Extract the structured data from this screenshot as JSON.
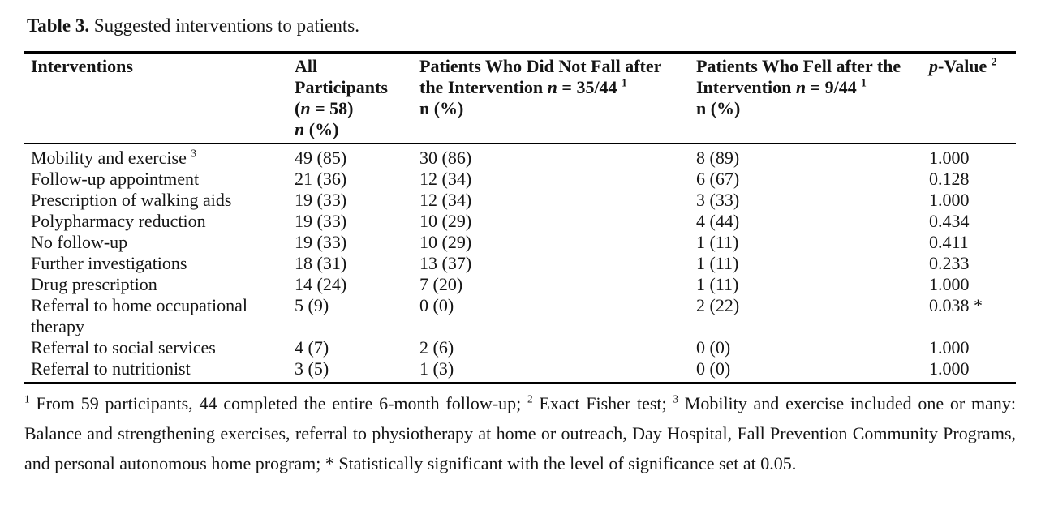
{
  "title": {
    "label": "Table 3.",
    "text": " Suggested interventions to patients."
  },
  "table": {
    "header": [
      {
        "lines": [
          [
            {
              "t": "Interventions"
            }
          ]
        ]
      },
      {
        "lines": [
          [
            {
              "t": "All"
            }
          ],
          [
            {
              "t": "Participants"
            }
          ],
          [
            {
              "t": "("
            },
            {
              "t": "n",
              "i": true
            },
            {
              "t": " = 58)"
            }
          ],
          [
            {
              "t": "n",
              "i": true
            },
            {
              "t": " (%)"
            }
          ]
        ]
      },
      {
        "lines": [
          [
            {
              "t": "Patients Who Did Not Fall after"
            }
          ],
          [
            {
              "t": "the Intervention "
            },
            {
              "t": "n",
              "i": true
            },
            {
              "t": " = 35/44 "
            },
            {
              "t": "1",
              "sup": true
            }
          ],
          [
            {
              "t": "n (%)"
            }
          ]
        ]
      },
      {
        "lines": [
          [
            {
              "t": "Patients Who Fell after the"
            }
          ],
          [
            {
              "t": "Intervention "
            },
            {
              "t": "n",
              "i": true
            },
            {
              "t": " = 9/44 "
            },
            {
              "t": "1",
              "sup": true
            }
          ],
          [
            {
              "t": "n (%)"
            }
          ]
        ]
      },
      {
        "lines": [
          [
            {
              "t": "p",
              "i": true
            },
            {
              "t": "-Value "
            },
            {
              "t": "2",
              "sup": true
            }
          ]
        ]
      }
    ],
    "rows": [
      {
        "label": [
          {
            "t": "Mobility and exercise "
          },
          {
            "t": "3",
            "sup": true
          }
        ],
        "all": "49 (85)",
        "no_fall": "30 (86)",
        "fell": "8 (89)",
        "p": "1.000"
      },
      {
        "label": [
          {
            "t": "Follow-up appointment"
          }
        ],
        "all": "21 (36)",
        "no_fall": "12 (34)",
        "fell": "6 (67)",
        "p": "0.128"
      },
      {
        "label": [
          {
            "t": "Prescription of walking aids"
          }
        ],
        "all": "19 (33)",
        "no_fall": "12 (34)",
        "fell": "3 (33)",
        "p": "1.000"
      },
      {
        "label": [
          {
            "t": "Polypharmacy reduction"
          }
        ],
        "all": "19 (33)",
        "no_fall": "10 (29)",
        "fell": "4 (44)",
        "p": "0.434"
      },
      {
        "label": [
          {
            "t": "No follow-up"
          }
        ],
        "all": "19 (33)",
        "no_fall": "10 (29)",
        "fell": "1 (11)",
        "p": "0.411"
      },
      {
        "label": [
          {
            "t": "Further investigations"
          }
        ],
        "all": "18 (31)",
        "no_fall": "13 (37)",
        "fell": "1 (11)",
        "p": "0.233"
      },
      {
        "label": [
          {
            "t": "Drug prescription"
          }
        ],
        "all": "14 (24)",
        "no_fall": "7 (20)",
        "fell": "1 (11)",
        "p": "1.000"
      },
      {
        "label": [
          {
            "t": "Referral to home occupational therapy"
          }
        ],
        "all": "5 (9)",
        "no_fall": "0 (0)",
        "fell": "2 (22)",
        "p": "0.038 *"
      },
      {
        "label": [
          {
            "t": "Referral to social services"
          }
        ],
        "all": "4 (7)",
        "no_fall": "2 (6)",
        "fell": "0 (0)",
        "p": "1.000"
      },
      {
        "label": [
          {
            "t": "Referral to nutritionist"
          }
        ],
        "all": "3 (5)",
        "no_fall": "1 (3)",
        "fell": "0 (0)",
        "p": "1.000"
      }
    ]
  },
  "footnote": {
    "segments": [
      {
        "t": "1",
        "sup": true
      },
      {
        "t": " From 59 participants, 44 completed the entire 6-month follow-up; "
      },
      {
        "t": "2",
        "sup": true
      },
      {
        "t": " Exact Fisher test; "
      },
      {
        "t": "3",
        "sup": true
      },
      {
        "t": " Mobility and exercise included one or many: Balance and strengthening exercises, referral to physiotherapy at home or outreach, Day Hospital, Fall Prevention Community Programs, and personal autonomous home program; * Statistically significant with the level of significance set at 0.05."
      }
    ]
  }
}
